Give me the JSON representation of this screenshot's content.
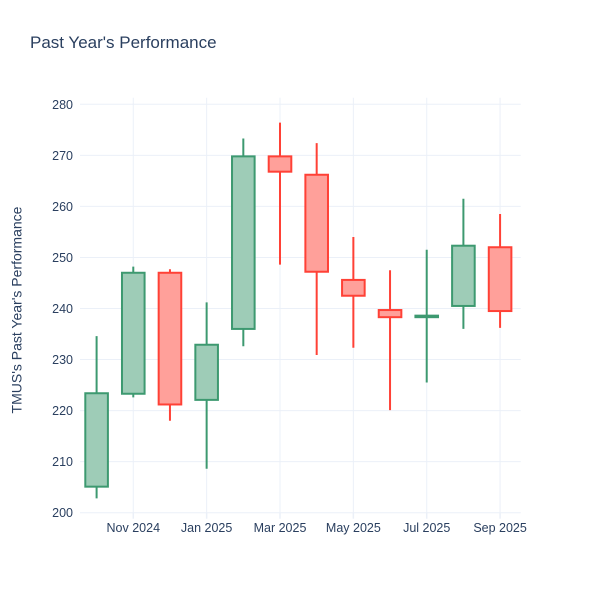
{
  "title": "Past Year's Performance",
  "colors": {
    "text": "#2a3f5f",
    "grid": "#ebf0f8",
    "background": "#ffffff",
    "increasing_line": "#3d9970",
    "increasing_fill": "#9eccb7",
    "decreasing_line": "#ff4136",
    "decreasing_fill": "#ffa09a"
  },
  "chart_data": {
    "type": "candlestick",
    "title": "Past Year's Performance",
    "xlabel": "",
    "ylabel": "TMUS's Past Year's Performance",
    "ylim": [
      200,
      281
    ],
    "grid": true,
    "legend": false,
    "y_ticks": [
      200,
      210,
      220,
      230,
      240,
      250,
      260,
      270,
      280
    ],
    "x_ticks": [
      {
        "label": "Nov 2024",
        "slot": 1
      },
      {
        "label": "Jan 2025",
        "slot": 3
      },
      {
        "label": "Mar 2025",
        "slot": 5
      },
      {
        "label": "May 2025",
        "slot": 7
      },
      {
        "label": "Jul 2025",
        "slot": 9
      },
      {
        "label": "Sep 2025",
        "slot": 11
      }
    ],
    "candles": [
      {
        "month": "Oct 2024",
        "open": 205.1,
        "high": 234.6,
        "low": 202.8,
        "close": 223.4,
        "direction": "up"
      },
      {
        "month": "Nov 2024",
        "open": 223.3,
        "high": 248.2,
        "low": 222.6,
        "close": 247.0,
        "direction": "up"
      },
      {
        "month": "Dec 2024",
        "open": 247.0,
        "high": 247.7,
        "low": 218.0,
        "close": 221.2,
        "direction": "down"
      },
      {
        "month": "Jan 2025",
        "open": 222.1,
        "high": 241.2,
        "low": 208.6,
        "close": 232.9,
        "direction": "up"
      },
      {
        "month": "Feb 2025",
        "open": 236.0,
        "high": 273.3,
        "low": 232.6,
        "close": 269.8,
        "direction": "up"
      },
      {
        "month": "Mar 2025",
        "open": 269.8,
        "high": 276.4,
        "low": 248.6,
        "close": 266.8,
        "direction": "down"
      },
      {
        "month": "Apr 2025",
        "open": 266.2,
        "high": 272.4,
        "low": 230.9,
        "close": 247.2,
        "direction": "down"
      },
      {
        "month": "May 2025",
        "open": 245.6,
        "high": 254.0,
        "low": 232.3,
        "close": 242.5,
        "direction": "down"
      },
      {
        "month": "Jun 2025",
        "open": 239.7,
        "high": 247.5,
        "low": 220.1,
        "close": 238.3,
        "direction": "down"
      },
      {
        "month": "Jul 2025",
        "open": 238.3,
        "high": 251.5,
        "low": 225.5,
        "close": 238.6,
        "direction": "up"
      },
      {
        "month": "Aug 2025",
        "open": 240.5,
        "high": 261.5,
        "low": 236.0,
        "close": 252.3,
        "direction": "up"
      },
      {
        "month": "Sep 2025",
        "open": 252.0,
        "high": 258.5,
        "low": 236.2,
        "close": 239.5,
        "direction": "down"
      }
    ]
  }
}
